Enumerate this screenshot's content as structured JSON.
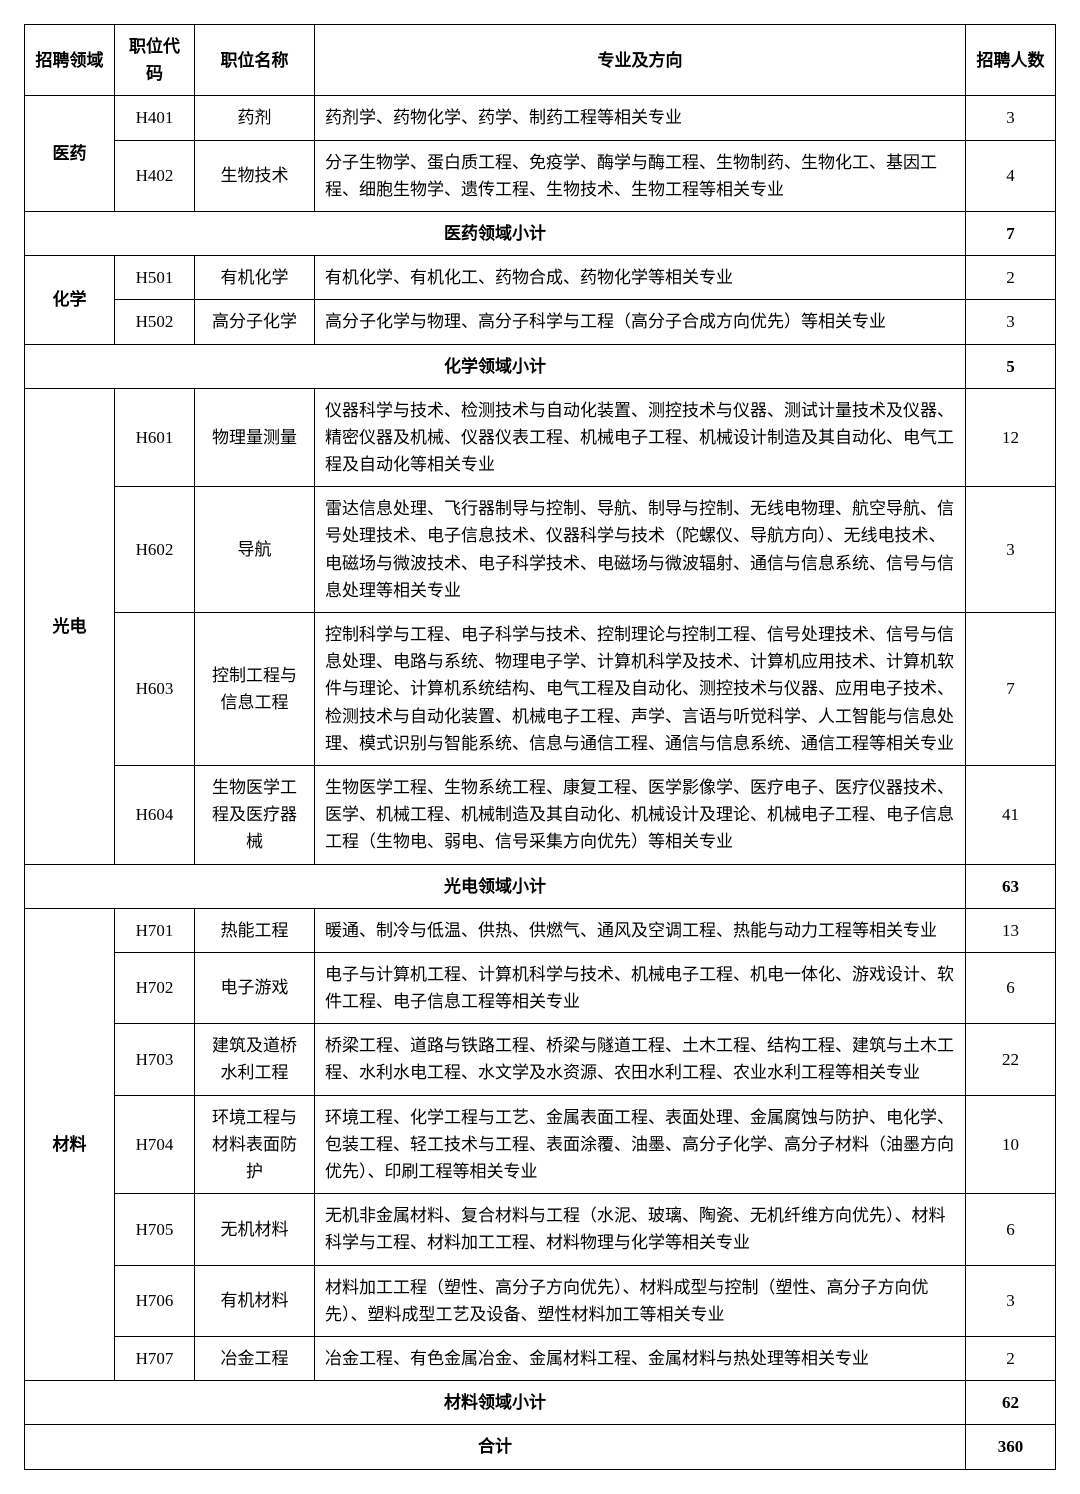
{
  "headers": {
    "field": "招聘领域",
    "code": "职位代码",
    "name": "职位名称",
    "direction": "专业及方向",
    "count": "招聘人数"
  },
  "sections": [
    {
      "field": "医药",
      "rows": [
        {
          "code": "H401",
          "name": "药剂",
          "direction": "药剂学、药物化学、药学、制药工程等相关专业",
          "count": "3"
        },
        {
          "code": "H402",
          "name": "生物技术",
          "direction": "分子生物学、蛋白质工程、免疫学、酶学与酶工程、生物制药、生物化工、基因工程、细胞生物学、遗传工程、生物技术、生物工程等相关专业",
          "count": "4"
        }
      ],
      "subtotal_label": "医药领域小计",
      "subtotal": "7"
    },
    {
      "field": "化学",
      "rows": [
        {
          "code": "H501",
          "name": "有机化学",
          "direction": "有机化学、有机化工、药物合成、药物化学等相关专业",
          "count": "2"
        },
        {
          "code": "H502",
          "name": "高分子化学",
          "direction": "高分子化学与物理、高分子科学与工程（高分子合成方向优先）等相关专业",
          "count": "3"
        }
      ],
      "subtotal_label": "化学领域小计",
      "subtotal": "5"
    },
    {
      "field": "光电",
      "rows": [
        {
          "code": "H601",
          "name": "物理量测量",
          "direction": "仪器科学与技术、检测技术与自动化装置、测控技术与仪器、测试计量技术及仪器、精密仪器及机械、仪器仪表工程、机械电子工程、机械设计制造及其自动化、电气工程及自动化等相关专业",
          "count": "12"
        },
        {
          "code": "H602",
          "name": "导航",
          "direction": "雷达信息处理、飞行器制导与控制、导航、制导与控制、无线电物理、航空导航、信号处理技术、电子信息技术、仪器科学与技术（陀螺仪、导航方向）、无线电技术、电磁场与微波技术、电子科学技术、电磁场与微波辐射、通信与信息系统、信号与信息处理等相关专业",
          "count": "3"
        },
        {
          "code": "H603",
          "name": "控制工程与信息工程",
          "direction": "控制科学与工程、电子科学与技术、控制理论与控制工程、信号处理技术、信号与信息处理、电路与系统、物理电子学、计算机科学及技术、计算机应用技术、计算机软件与理论、计算机系统结构、电气工程及自动化、测控技术与仪器、应用电子技术、检测技术与自动化装置、机械电子工程、声学、言语与听觉科学、人工智能与信息处理、模式识别与智能系统、信息与通信工程、通信与信息系统、通信工程等相关专业",
          "count": "7"
        },
        {
          "code": "H604",
          "name": "生物医学工程及医疗器械",
          "direction": "生物医学工程、生物系统工程、康复工程、医学影像学、医疗电子、医疗仪器技术、医学、机械工程、机械制造及其自动化、机械设计及理论、机械电子工程、电子信息工程（生物电、弱电、信号采集方向优先）等相关专业",
          "count": "41"
        }
      ],
      "subtotal_label": "光电领域小计",
      "subtotal": "63"
    },
    {
      "field": "材料",
      "rows": [
        {
          "code": "H701",
          "name": "热能工程",
          "direction": "暖通、制冷与低温、供热、供燃气、通风及空调工程、热能与动力工程等相关专业",
          "count": "13"
        },
        {
          "code": "H702",
          "name": "电子游戏",
          "direction": "电子与计算机工程、计算机科学与技术、机械电子工程、机电一体化、游戏设计、软件工程、电子信息工程等相关专业",
          "count": "6"
        },
        {
          "code": "H703",
          "name": "建筑及道桥水利工程",
          "direction": "桥梁工程、道路与铁路工程、桥梁与隧道工程、土木工程、结构工程、建筑与土木工程、水利水电工程、水文学及水资源、农田水利工程、农业水利工程等相关专业",
          "count": "22"
        },
        {
          "code": "H704",
          "name": "环境工程与材料表面防护",
          "direction": "环境工程、化学工程与工艺、金属表面工程、表面处理、金属腐蚀与防护、电化学、包装工程、轻工技术与工程、表面涂覆、油墨、高分子化学、高分子材料（油墨方向优先）、印刷工程等相关专业",
          "count": "10"
        },
        {
          "code": "H705",
          "name": "无机材料",
          "direction": "无机非金属材料、复合材料与工程（水泥、玻璃、陶瓷、无机纤维方向优先）、材料科学与工程、材料加工工程、材料物理与化学等相关专业",
          "count": "6"
        },
        {
          "code": "H706",
          "name": "有机材料",
          "direction": "材料加工工程（塑性、高分子方向优先）、材料成型与控制（塑性、高分子方向优先）、塑料成型工艺及设备、塑性材料加工等相关专业",
          "count": "3"
        },
        {
          "code": "H707",
          "name": "冶金工程",
          "direction": "冶金工程、有色金属冶金、金属材料工程、金属材料与热处理等相关专业",
          "count": "2"
        }
      ],
      "subtotal_label": "材料领域小计",
      "subtotal": "62"
    }
  ],
  "grand_total_label": "合计",
  "grand_total": "360"
}
